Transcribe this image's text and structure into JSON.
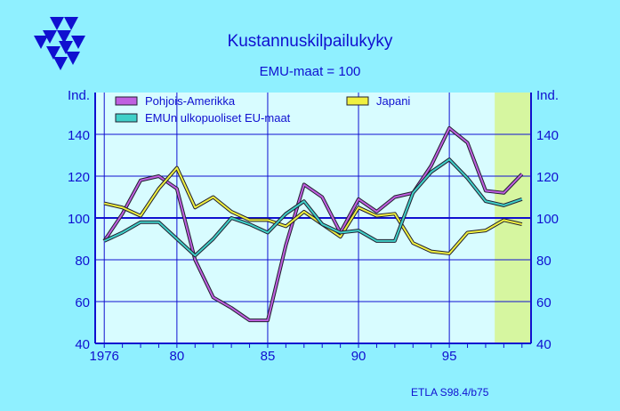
{
  "header": {
    "title": "Kustannuskilpailukyky",
    "subtitle": "EMU-maat = 100",
    "logo_icon": "etla-triangles-logo"
  },
  "footer": {
    "source": "ETLA S98.4/b75"
  },
  "colors": {
    "background": "#8ff0ff",
    "plot_area": "#d8fcff",
    "forecast_shade": "#d6f6a0",
    "axis": "#1010d0",
    "grid": "#1010d0",
    "Pohjois-Amerikka": "#c060e0",
    "Japani": "#f0f040",
    "EMUn ulkopuoliset EU-maat": "#40d0c8"
  },
  "chart_data": {
    "type": "line",
    "title": "Kustannuskilpailukyky",
    "subtitle": "EMU-maat = 100",
    "ylabel_left": "Ind.",
    "ylabel_right": "Ind.",
    "x": [
      1976,
      1977,
      1978,
      1979,
      1980,
      1981,
      1982,
      1983,
      1984,
      1985,
      1986,
      1987,
      1988,
      1989,
      1990,
      1991,
      1992,
      1993,
      1994,
      1995,
      1996,
      1997,
      1998,
      1999
    ],
    "xlim": [
      1975.5,
      1999.5
    ],
    "ylim": [
      40,
      160
    ],
    "x_ticks": [
      1976,
      1980,
      1985,
      1990,
      1995
    ],
    "x_tick_labels": [
      "1976",
      "80",
      "85",
      "90",
      "95"
    ],
    "y_ticks": [
      40,
      60,
      80,
      100,
      120,
      140
    ],
    "reference_line": 100,
    "forecast_shading": [
      1997.5,
      1999.5
    ],
    "grid": true,
    "legend_position": "top",
    "series": [
      {
        "name": "Pohjois-Amerikka",
        "values": [
          89,
          102,
          118,
          120,
          114,
          80,
          62,
          57,
          51,
          51,
          87,
          116,
          110,
          93,
          109,
          103,
          110,
          112,
          125,
          143,
          136,
          113,
          112,
          121
        ]
      },
      {
        "name": "Japani",
        "values": [
          107,
          105,
          101,
          114,
          124,
          105,
          110,
          103,
          99,
          99,
          96,
          103,
          97,
          91,
          105,
          101,
          102,
          88,
          84,
          83,
          93,
          94,
          99,
          97
        ]
      },
      {
        "name": "EMUn ulkopuoliset EU-maat",
        "values": [
          89,
          93,
          98,
          98,
          90,
          82,
          90,
          100,
          97,
          93,
          102,
          108,
          97,
          93,
          94,
          89,
          89,
          112,
          122,
          128,
          119,
          108,
          106,
          109
        ]
      }
    ]
  }
}
